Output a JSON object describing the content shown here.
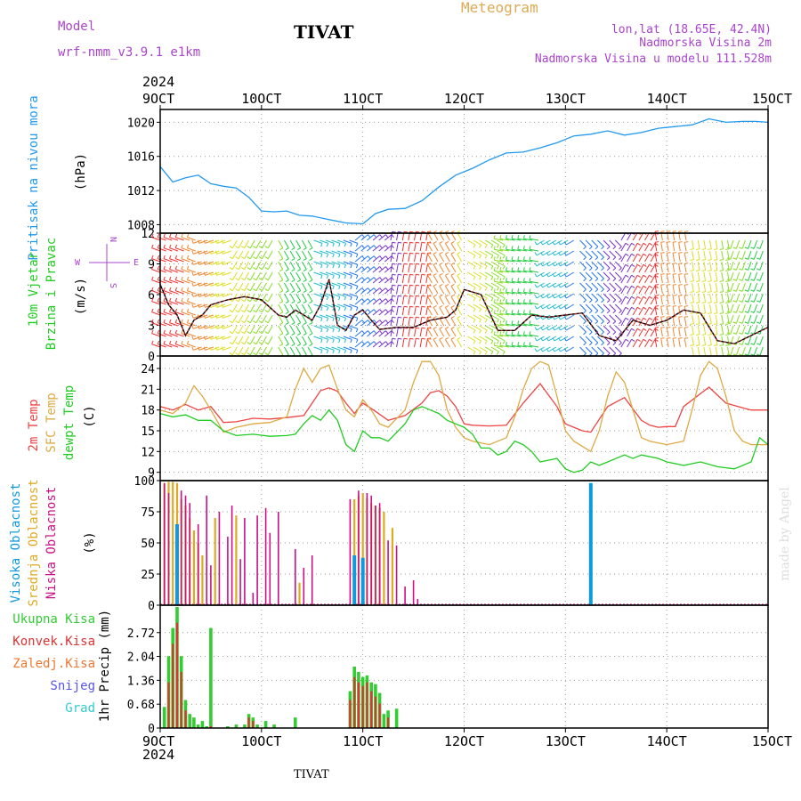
{
  "header": {
    "model_label": "Model",
    "model_name": "wrf-nmm_v3.9.1 e1km",
    "station": "TIVAT",
    "meteogram": "Meteogram",
    "lonlat": "lon,lat (18.65E, 42.4N)",
    "elevation": "Nadmorska Visina 2m",
    "model_elevation": "Nadmorska Visina u modelu 111.528m"
  },
  "footer": {
    "station": "TIVAT",
    "credit": "made by Angel"
  },
  "colors": {
    "pressure": "#2299ee",
    "temp2m": "#ee4444",
    "sfc_temp": "#ddaa44",
    "dewpt": "#22cc22",
    "high_cloud": "#1199dd",
    "mid_cloud": "#ddaa22",
    "low_cloud": "#cc1188",
    "total_precip": "#33cc33",
    "conv_precip": "#dd3333",
    "title_purple": "#aa44cc",
    "meteogram_orange": "#ddaa55"
  },
  "chart_data": [
    {
      "type": "line",
      "panel": "pressure",
      "ylabel": "Pritisak na nivou mora",
      "unit": "(hPa)",
      "yticks": [
        1008,
        1012,
        1016,
        1020
      ],
      "ylim": [
        1007,
        1021.5
      ],
      "xlim": [
        0,
        144
      ],
      "x_ticks": [
        "9OCT",
        "10OCT",
        "11OCT",
        "12OCT",
        "13OCT",
        "14OCT",
        "15OCT"
      ],
      "x_year": "2024",
      "grid": true,
      "series": [
        {
          "name": "",
          "x": [
            0,
            3,
            6,
            9,
            12,
            15,
            18,
            21,
            24,
            27,
            30,
            33,
            36,
            40,
            44,
            48,
            51,
            54,
            58,
            62,
            66,
            70,
            74,
            78,
            82,
            86,
            90,
            94,
            98,
            102,
            106,
            110,
            114,
            118,
            122,
            126,
            130,
            134,
            138,
            141,
            144
          ],
          "values": [
            1014.8,
            1013.0,
            1013.5,
            1013.8,
            1012.8,
            1012.5,
            1012.3,
            1011.2,
            1009.6,
            1009.5,
            1009.6,
            1009.1,
            1009.0,
            1008.6,
            1008.2,
            1008.1,
            1009.3,
            1009.8,
            1009.9,
            1010.8,
            1012.4,
            1013.8,
            1014.6,
            1015.6,
            1016.4,
            1016.5,
            1017.0,
            1017.6,
            1018.4,
            1018.6,
            1019.0,
            1018.5,
            1018.8,
            1019.3,
            1019.5,
            1019.7,
            1020.4,
            1020.0,
            1020.1,
            1020.1,
            1020.0
          ]
        }
      ]
    },
    {
      "type": "line",
      "panel": "wind",
      "ylabel": "10m Vjetar",
      "ylabel2": "Brzina i Pravac",
      "unit": "(m/s)",
      "legend_compass": [
        "N",
        "E",
        "S",
        "W"
      ],
      "yticks": [
        0,
        3,
        6,
        9,
        12
      ],
      "ylim": [
        0,
        12
      ],
      "xlim": [
        0,
        144
      ],
      "grid": true,
      "series": [
        {
          "name": "",
          "x": [
            0,
            2,
            4,
            6,
            8,
            10,
            12,
            16,
            20,
            24,
            28,
            30,
            32,
            34,
            36,
            38,
            40,
            42,
            44,
            46,
            48,
            50,
            52,
            56,
            60,
            64,
            68,
            70,
            72,
            76,
            80,
            84,
            88,
            92,
            96,
            100,
            104,
            108,
            112,
            116,
            120,
            124,
            128,
            132,
            136,
            140,
            144
          ],
          "values": [
            7.0,
            5.0,
            4.0,
            2.0,
            3.5,
            4.0,
            5.0,
            5.5,
            5.8,
            5.5,
            4.0,
            3.8,
            4.5,
            4.0,
            3.5,
            5.0,
            7.5,
            3.0,
            2.5,
            4.0,
            4.5,
            3.5,
            2.6,
            2.8,
            2.8,
            3.5,
            3.8,
            4.5,
            6.5,
            6.0,
            2.5,
            2.5,
            4.0,
            3.8,
            4.0,
            4.2,
            2.0,
            1.5,
            3.5,
            3.0,
            3.5,
            4.5,
            4.2,
            1.5,
            1.2,
            2.0,
            2.8
          ]
        }
      ]
    },
    {
      "type": "line",
      "panel": "temperature",
      "ylabel": "2m Temp",
      "ylabel2": "SFC Temp",
      "ylabel3": "dewpt Temp",
      "unit": "(C)",
      "yticks": [
        9,
        12,
        15,
        18,
        21,
        24
      ],
      "ylim": [
        7.8,
        25.8
      ],
      "xlim": [
        0,
        144
      ],
      "grid": true,
      "series": [
        {
          "name": "2m Temp",
          "x": [
            0,
            3,
            6,
            9,
            12,
            15,
            18,
            22,
            26,
            30,
            34,
            36,
            38,
            40,
            42,
            44,
            46,
            48,
            51,
            54,
            58,
            62,
            64,
            66,
            68,
            70,
            72,
            74,
            78,
            82,
            86,
            90,
            94,
            96,
            98,
            100,
            102,
            106,
            110,
            114,
            116,
            118,
            120,
            122,
            124,
            130,
            134,
            138,
            140,
            142,
            144
          ],
          "values": [
            18.5,
            18.0,
            18.8,
            18.0,
            18.5,
            16.2,
            16.3,
            16.8,
            16.7,
            16.9,
            17.2,
            19.0,
            20.8,
            21.2,
            20.7,
            19.0,
            17.5,
            19.0,
            17.8,
            16.5,
            17.2,
            19.0,
            20.5,
            20.8,
            20.0,
            18.5,
            16.0,
            15.8,
            15.7,
            15.8,
            19.0,
            21.8,
            18.5,
            16.0,
            15.5,
            15.0,
            14.8,
            18.5,
            19.8,
            16.5,
            15.8,
            15.5,
            15.6,
            15.6,
            18.5,
            21.3,
            19.0,
            18.3,
            18.0,
            18.0,
            18.0
          ]
        },
        {
          "name": "SFC Temp",
          "x": [
            0,
            3,
            6,
            8,
            10,
            12,
            15,
            18,
            22,
            26,
            30,
            32,
            34,
            36,
            38,
            40,
            42,
            44,
            46,
            48,
            50,
            52,
            54,
            58,
            60,
            62,
            64,
            66,
            68,
            70,
            72,
            74,
            78,
            82,
            84,
            86,
            88,
            90,
            92,
            94,
            96,
            98,
            102,
            104,
            106,
            108,
            110,
            112,
            114,
            116,
            120,
            124,
            126,
            128,
            130,
            132,
            134,
            136,
            138,
            140,
            144
          ],
          "values": [
            18.0,
            17.5,
            19.0,
            21.5,
            20.0,
            18.0,
            14.8,
            15.5,
            16.0,
            16.2,
            17.0,
            21.0,
            24.0,
            22.0,
            24.0,
            24.5,
            21.0,
            18.0,
            17.0,
            19.5,
            18.0,
            16.0,
            15.5,
            18.0,
            22.0,
            25.0,
            25.0,
            23.0,
            18.0,
            15.5,
            14.0,
            13.5,
            13.0,
            14.0,
            17.0,
            21.0,
            24.0,
            25.0,
            24.5,
            20.0,
            15.0,
            13.5,
            12.0,
            15.0,
            20.0,
            23.5,
            22.0,
            18.0,
            14.0,
            13.5,
            13.0,
            13.5,
            18.0,
            23.0,
            25.0,
            24.0,
            20.0,
            15.0,
            13.5,
            13.0,
            13.0
          ]
        },
        {
          "name": "dewpt Temp",
          "x": [
            0,
            3,
            6,
            9,
            12,
            15,
            18,
            22,
            26,
            30,
            32,
            34,
            36,
            38,
            40,
            42,
            44,
            46,
            48,
            50,
            52,
            54,
            58,
            60,
            62,
            64,
            66,
            68,
            70,
            72,
            74,
            76,
            78,
            80,
            82,
            84,
            86,
            88,
            90,
            94,
            96,
            98,
            100,
            102,
            104,
            106,
            110,
            112,
            114,
            118,
            120,
            124,
            128,
            132,
            136,
            140,
            142,
            144
          ],
          "values": [
            17.5,
            17.0,
            17.3,
            16.5,
            16.5,
            15.0,
            14.3,
            14.5,
            14.2,
            14.3,
            14.5,
            16.0,
            17.2,
            16.5,
            18.0,
            16.5,
            13.0,
            12.0,
            15.0,
            14.0,
            14.0,
            13.5,
            16.0,
            18.0,
            18.5,
            18.0,
            17.5,
            16.5,
            16.0,
            15.5,
            14.5,
            12.5,
            12.5,
            11.5,
            12.0,
            13.5,
            13.0,
            12.0,
            10.5,
            11.0,
            9.5,
            9.0,
            9.3,
            10.5,
            10.0,
            10.5,
            11.5,
            11.0,
            11.5,
            11.0,
            10.5,
            10.0,
            10.5,
            9.8,
            9.5,
            10.5,
            14.0,
            13.0
          ]
        }
      ]
    },
    {
      "type": "bar",
      "panel": "clouds",
      "ylabel": "Visoka Oblacnost",
      "ylabel2": "Srednja Oblacnost",
      "ylabel3": "Niska Oblacnost",
      "unit": "(%)",
      "yticks": [
        0,
        25,
        50,
        75,
        100
      ],
      "ylim": [
        0,
        100
      ],
      "xlim": [
        0,
        144
      ],
      "grid": true,
      "series": [
        {
          "name": "Visoka Oblacnost",
          "x": [
            4,
            46,
            48,
            102
          ],
          "values": [
            65,
            40,
            38,
            98
          ]
        },
        {
          "name": "Srednja Oblacnost",
          "x": [
            1,
            2,
            3,
            4,
            5,
            6,
            7,
            8,
            9,
            10,
            13,
            18,
            33,
            46,
            47,
            48,
            49,
            50,
            51,
            52,
            53,
            55
          ],
          "values": [
            98,
            99,
            99,
            98,
            85,
            80,
            70,
            60,
            50,
            40,
            70,
            72,
            18,
            85,
            88,
            90,
            86,
            82,
            80,
            78,
            75,
            62
          ]
        },
        {
          "name": "Niska Oblacnost",
          "x": [
            1,
            2,
            5,
            6,
            7,
            9,
            11,
            12,
            14,
            16,
            17,
            19,
            20,
            22,
            23,
            25,
            26,
            28,
            32,
            34,
            36,
            45,
            47,
            49,
            50,
            51,
            52,
            54,
            56,
            58,
            60,
            61
          ],
          "values": [
            98,
            90,
            92,
            88,
            82,
            65,
            88,
            32,
            75,
            55,
            80,
            37,
            70,
            10,
            72,
            78,
            58,
            75,
            45,
            30,
            40,
            85,
            92,
            90,
            88,
            80,
            82,
            52,
            48,
            15,
            20,
            5
          ]
        }
      ]
    },
    {
      "type": "bar",
      "panel": "precip",
      "ylabel": "1hr Precip (mm)",
      "legend": [
        "Ukupna Kisa",
        "Konvek.Kisa",
        "Zaledj.Kisa",
        "Snijeg",
        "Grad"
      ],
      "yticks": [
        0,
        0.68,
        1.36,
        2.04,
        2.72
      ],
      "ylim": [
        0,
        3.5
      ],
      "xlim": [
        0,
        144
      ],
      "grid": true,
      "series": [
        {
          "name": "Ukupna Kisa",
          "x": [
            1,
            2,
            3,
            4,
            5,
            6,
            7,
            8,
            9,
            10,
            11,
            12,
            16,
            18,
            20,
            21,
            22,
            23,
            25,
            27,
            32,
            45,
            46,
            47,
            48,
            49,
            50,
            51,
            52,
            53,
            54,
            56
          ],
          "values": [
            0.6,
            2.05,
            2.85,
            3.45,
            2.05,
            0.8,
            0.4,
            0.3,
            0.1,
            0.2,
            0.05,
            2.85,
            0.05,
            0.1,
            0.1,
            0.4,
            0.3,
            0.1,
            0.2,
            0.1,
            0.3,
            1.05,
            1.75,
            1.6,
            1.45,
            1.5,
            1.3,
            1.25,
            1.0,
            0.4,
            0.5,
            0.55
          ]
        },
        {
          "name": "Konvek.Kisa",
          "x": [
            2,
            3,
            4,
            5,
            6,
            12,
            21,
            22,
            45,
            46,
            47,
            48,
            49,
            50,
            51,
            52,
            54
          ],
          "values": [
            1.3,
            2.4,
            3.0,
            1.6,
            0.5,
            0.05,
            0.3,
            0.2,
            0.8,
            1.45,
            1.3,
            1.2,
            1.3,
            1.05,
            0.9,
            0.7,
            0.3
          ]
        }
      ]
    }
  ]
}
